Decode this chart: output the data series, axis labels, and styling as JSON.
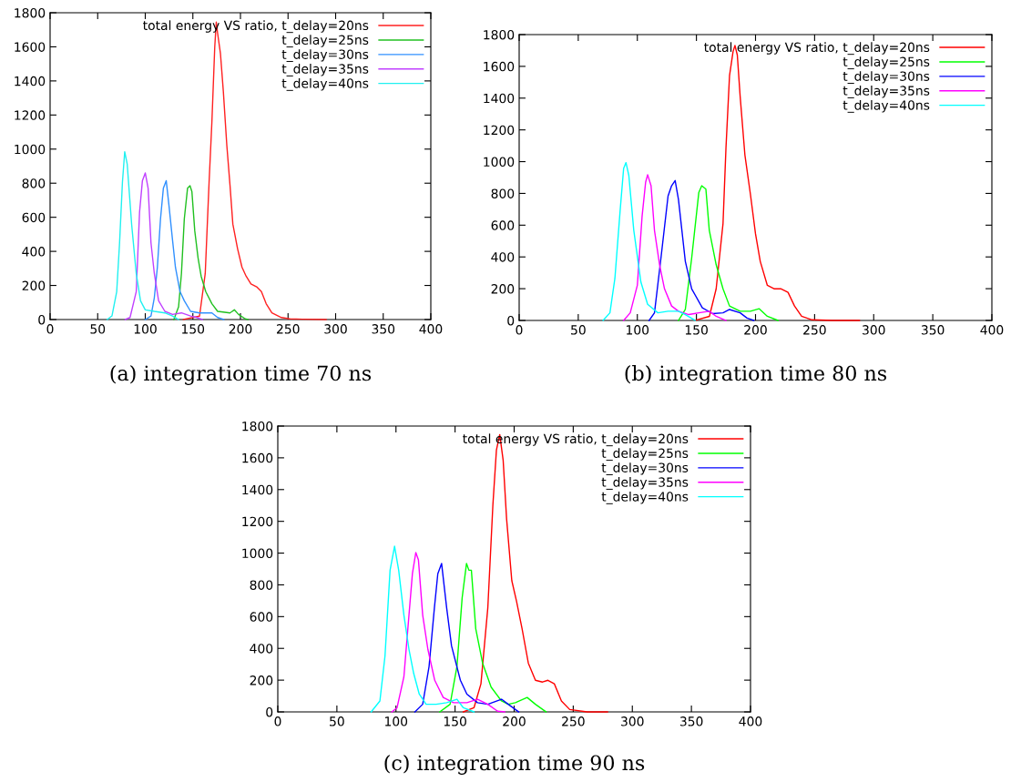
{
  "chart_data": [
    {
      "type": "line",
      "xlim": [
        0,
        400
      ],
      "ylim": [
        0,
        1800
      ],
      "xticks": [
        0,
        50,
        100,
        150,
        200,
        250,
        300,
        350,
        400
      ],
      "yticks": [
        0,
        200,
        400,
        600,
        800,
        1000,
        1200,
        1400,
        1600,
        1800
      ],
      "legend": "top right",
      "grid": false,
      "annotations": [
        "(a) integration time 70 ns"
      ],
      "series": [
        {
          "name": "total energy VS ratio, t_delay=20ns",
          "color": "#ff2020",
          "x": [
            140,
            157,
            163,
            167,
            170,
            173,
            174.6,
            176,
            179,
            182,
            185.7,
            189,
            192,
            197,
            201.6,
            206,
            211,
            217.5,
            222,
            227,
            233,
            243,
            252,
            265,
            290
          ],
          "values": [
            0,
            20,
            270,
            800,
            1160,
            1600,
            1745,
            1680,
            1560,
            1340,
            1020,
            790,
            560,
            415,
            307,
            254,
            209,
            190,
            164,
            93,
            39,
            12,
            4,
            2,
            0
          ]
        },
        {
          "name": "t_delay=25ns",
          "color": "#20c020",
          "x": [
            130,
            135,
            138,
            141,
            144.4,
            147,
            149,
            152,
            155.5,
            158.7,
            163.5,
            170,
            176,
            189,
            193.6,
            198,
            205,
            208
          ],
          "values": [
            0,
            75,
            270,
            590,
            770,
            785,
            750,
            520,
            360,
            254,
            164,
            93,
            48,
            39,
            57,
            30,
            4,
            0
          ]
        },
        {
          "name": "t_delay=30ns",
          "color": "#3090ff",
          "x": [
            100,
            106,
            109.5,
            112.7,
            116,
            119,
            122,
            125,
            128.6,
            131.7,
            136.5,
            141,
            147.6,
            157,
            170,
            176,
            182.5
          ],
          "values": [
            0,
            21,
            128,
            306,
            590,
            770,
            815,
            664,
            468,
            306,
            164,
            110,
            48,
            39,
            39,
            12,
            0
          ]
        },
        {
          "name": "t_delay=35ns",
          "color": "#c040ff",
          "x": [
            79,
            84,
            90.5,
            94,
            97,
            100,
            103,
            106,
            109.5,
            114,
            120.6,
            128.6,
            138,
            147.6,
            154,
            160
          ],
          "values": [
            0,
            12,
            164,
            630,
            815,
            860,
            770,
            450,
            270,
            110,
            48,
            30,
            39,
            21,
            12,
            0
          ]
        },
        {
          "name": "t_delay=40ns",
          "color": "#20f0f0",
          "x": [
            60,
            65,
            70,
            73,
            76,
            78.4,
            81,
            85.7,
            90.5,
            95,
            100,
            109.5,
            120.6,
            128.6,
            135
          ],
          "values": [
            0,
            21,
            164,
            450,
            805,
            985,
            913,
            557,
            270,
            110,
            57,
            48,
            39,
            21,
            0
          ]
        }
      ]
    },
    {
      "type": "line",
      "xlim": [
        0,
        400
      ],
      "ylim": [
        0,
        1800
      ],
      "xticks": [
        0,
        50,
        100,
        150,
        200,
        250,
        300,
        350,
        400
      ],
      "yticks": [
        0,
        200,
        400,
        600,
        800,
        1000,
        1200,
        1400,
        1600,
        1800
      ],
      "legend": "top right",
      "grid": false,
      "annotations": [
        "(b) integration time 80 ns"
      ],
      "series": [
        {
          "name": "total energy VS ratio, t_delay=20ns",
          "color": "#ff0000",
          "x": [
            149,
            161,
            166.7,
            172.5,
            175,
            178,
            181,
            182.6,
            184.6,
            187,
            191,
            195.7,
            200,
            204,
            210,
            216,
            221.7,
            227.5,
            233,
            239,
            247.8,
            265,
            288
          ],
          "values": [
            0,
            26,
            199,
            610,
            1087,
            1541,
            1693,
            1732,
            1671,
            1411,
            1043,
            794,
            545,
            372,
            221,
            199,
            199,
            177,
            91,
            26,
            4,
            0,
            0
          ]
        },
        {
          "name": "t_delay=25ns",
          "color": "#00ff00",
          "x": [
            134.8,
            140.6,
            146,
            152,
            154.5,
            158,
            160.9,
            166.7,
            172.5,
            178,
            187,
            195.7,
            203,
            210,
            219
          ],
          "values": [
            0,
            69,
            394,
            805,
            848,
            827,
            567,
            351,
            199,
            91,
            58,
            58,
            74,
            26,
            0
          ]
        },
        {
          "name": "t_delay=30ns",
          "color": "#0000ff",
          "x": [
            110,
            114.5,
            120,
            126,
            129,
            132,
            134.8,
            140.6,
            146,
            155,
            163.8,
            172.5,
            178,
            187,
            192.8,
            198.6
          ],
          "values": [
            0,
            48,
            394,
            784,
            848,
            881,
            762,
            372,
            199,
            80,
            43,
            48,
            69,
            48,
            15,
            0
          ]
        },
        {
          "name": "t_delay=35ns",
          "color": "#ff00ff",
          "x": [
            88.4,
            94,
            100,
            104,
            107,
            108.7,
            111.6,
            114.5,
            118.8,
            123,
            129,
            134.8,
            143.5,
            152,
            161,
            166.7,
            175
          ],
          "values": [
            0,
            48,
            221,
            654,
            870,
            918,
            848,
            567,
            351,
            199,
            91,
            58,
            37,
            48,
            58,
            26,
            0
          ]
        },
        {
          "name": "t_delay=40ns",
          "color": "#00ffff",
          "x": [
            71,
            76.8,
            81,
            85.5,
            88.4,
            90.4,
            92.8,
            97,
            103,
            108.7,
            117.4,
            126,
            134.8,
            140.6,
            149
          ],
          "values": [
            0,
            48,
            264,
            697,
            957,
            994,
            913,
            567,
            242,
            102,
            48,
            58,
            58,
            37,
            0
          ]
        }
      ]
    },
    {
      "type": "line",
      "xlim": [
        0,
        400
      ],
      "ylim": [
        0,
        1800
      ],
      "xticks": [
        0,
        50,
        100,
        150,
        200,
        250,
        300,
        350,
        400
      ],
      "yticks": [
        0,
        200,
        400,
        600,
        800,
        1000,
        1200,
        1400,
        1600,
        1800
      ],
      "legend": "top right",
      "grid": false,
      "annotations": [
        "(c) integration time 90 ns"
      ],
      "series": [
        {
          "name": "total energy VS ratio, t_delay=20ns",
          "color": "#ff0000",
          "x": [
            157,
            166,
            171.9,
            177.7,
            182,
            185,
            187.8,
            190.7,
            193.6,
            198,
            202,
            206.7,
            212,
            218,
            224,
            228.6,
            234,
            240,
            247,
            261.7,
            279
          ],
          "values": [
            0,
            26,
            177,
            654,
            1303,
            1649,
            1746,
            1584,
            1216,
            827,
            697,
            524,
            307,
            199,
            188,
            199,
            177,
            69,
            15,
            0,
            0
          ]
        },
        {
          "name": "t_delay=25ns",
          "color": "#00ff00",
          "x": [
            137,
            145.8,
            151.6,
            156,
            159.7,
            161.7,
            163.8,
            167.5,
            173.3,
            180.5,
            189.3,
            195,
            201,
            211,
            218,
            227
          ],
          "values": [
            0,
            48,
            286,
            719,
            935,
            892,
            892,
            524,
            307,
            156,
            69,
            48,
            58,
            91,
            48,
            0
          ]
        },
        {
          "name": "t_delay=30ns",
          "color": "#0000ff",
          "x": [
            116,
            122.6,
            128,
            132.5,
            135.4,
            138.6,
            142.9,
            147,
            154.5,
            160,
            169,
            177.7,
            189.3,
            195,
            203.8
          ],
          "values": [
            0,
            48,
            286,
            654,
            870,
            935,
            654,
            416,
            199,
            112,
            58,
            48,
            80,
            48,
            0
          ]
        },
        {
          "name": "t_delay=35ns",
          "color": "#ff00ff",
          "x": [
            96.5,
            100.9,
            106.7,
            111,
            113.9,
            116.8,
            119,
            122.6,
            127,
            132.8,
            140,
            148.8,
            160,
            169,
            177.7,
            186,
            192
          ],
          "values": [
            0,
            26,
            221,
            610,
            870,
            1004,
            957,
            610,
            394,
            199,
            91,
            58,
            58,
            80,
            48,
            4,
            0
          ]
        },
        {
          "name": "t_delay=40ns",
          "color": "#00ffff",
          "x": [
            79,
            86.4,
            90.7,
            95,
            98.8,
            102.3,
            106.7,
            111,
            115,
            119.7,
            125.5,
            134,
            142.9,
            151.6,
            157,
            166
          ],
          "values": [
            0,
            69,
            351,
            892,
            1043,
            892,
            610,
            394,
            242,
            112,
            48,
            48,
            58,
            80,
            26,
            0
          ]
        }
      ]
    }
  ]
}
